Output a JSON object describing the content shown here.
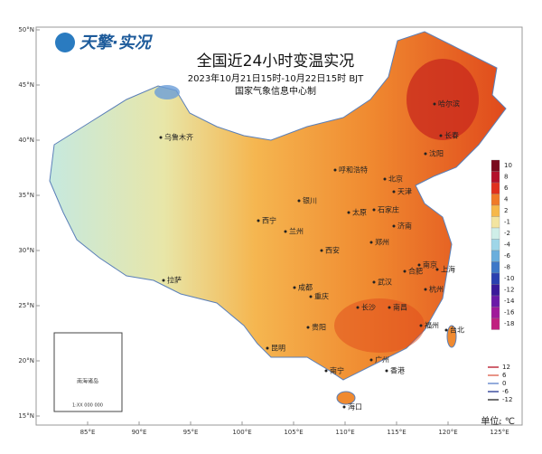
{
  "logo": "天擎·实况",
  "header": {
    "title": "全国近24小时变温实况",
    "subtitle": "2023年10月21日15时-10月22日15时 BJT",
    "credit": "国家气象信息中心制"
  },
  "lat_labels": [
    "50°N",
    "45°N",
    "40°N",
    "35°N",
    "30°N",
    "25°N",
    "20°N",
    "15°N"
  ],
  "lon_labels": [
    "85°E",
    "90°E",
    "95°E",
    "100°E",
    "105°E",
    "110°E",
    "115°E",
    "120°E",
    "125°E"
  ],
  "cities": [
    "哈尔滨",
    "长春",
    "沈阳",
    "乌鲁木齐",
    "呼和浩特",
    "北京",
    "天津",
    "石家庄",
    "太原",
    "济南",
    "银川",
    "西宁",
    "兰州",
    "郑州",
    "西安",
    "南京",
    "合肥",
    "上海",
    "武汉",
    "杭州",
    "拉萨",
    "成都",
    "重庆",
    "长沙",
    "南昌",
    "福州",
    "贵阳",
    "昆明",
    "南宁",
    "广州",
    "香港",
    "台北",
    "海口"
  ],
  "inset": {
    "label": "南海诸岛",
    "scale": "1:XX 000 000"
  },
  "color_legend": {
    "labels": [
      "10",
      "8",
      "6",
      "4",
      "2",
      "-1",
      "-2",
      "-4",
      "-6",
      "-8",
      "-10",
      "-12",
      "-14",
      "-16",
      "-18"
    ],
    "colors": [
      "#7a0a1e",
      "#b3102a",
      "#e0301e",
      "#f07a28",
      "#f6b84a",
      "#f2e4a0",
      "#cfeee8",
      "#9fd6e8",
      "#6aaedc",
      "#3d78c8",
      "#2a40b0",
      "#3a1a9a",
      "#6a1aa8",
      "#a01a9a",
      "#c02080"
    ]
  },
  "contour_legend": {
    "labels": [
      "12",
      "6",
      "0",
      "-6",
      "-12"
    ],
    "colors": [
      "#c03040",
      "#e07060",
      "#7090d0",
      "#4050a0",
      "#404040"
    ]
  },
  "unit": "单位: ℃"
}
